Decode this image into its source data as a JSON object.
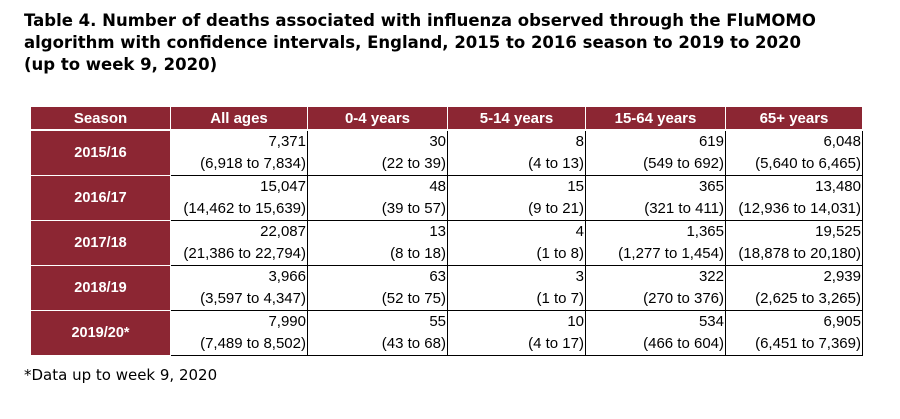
{
  "title_lines": [
    "Table 4. Number of deaths associated with influenza observed through the FluMOMO",
    "algorithm with confidence intervals, England, 2015 to 2016 season to 2019 to 2020",
    "(up to week 9, 2020)"
  ],
  "headers": [
    "Season",
    "All ages",
    "0-4 years",
    "5-14 years",
    "15-64 years",
    "65+ years"
  ],
  "rows": [
    {
      "season": "2015/16",
      "cells": [
        {
          "value": "7,371",
          "ci": "(6,918 to 7,834)"
        },
        {
          "value": "30",
          "ci": "(22 to 39)"
        },
        {
          "value": "8",
          "ci": "(4 to 13)"
        },
        {
          "value": "619",
          "ci": "(549 to 692)"
        },
        {
          "value": "6,048",
          "ci": "(5,640 to 6,465)"
        }
      ]
    },
    {
      "season": "2016/17",
      "cells": [
        {
          "value": "15,047",
          "ci": "(14,462 to 15,639)"
        },
        {
          "value": "48",
          "ci": "(39 to 57)"
        },
        {
          "value": "15",
          "ci": "(9 to 21)"
        },
        {
          "value": "365",
          "ci": "(321 to 411)"
        },
        {
          "value": "13,480",
          "ci": "(12,936 to 14,031)"
        }
      ]
    },
    {
      "season": "2017/18",
      "cells": [
        {
          "value": "22,087",
          "ci": "(21,386 to 22,794)"
        },
        {
          "value": "13",
          "ci": "(8 to 18)"
        },
        {
          "value": "4",
          "ci": "(1 to 8)"
        },
        {
          "value": "1,365",
          "ci": "(1,277 to 1,454)"
        },
        {
          "value": "19,525",
          "ci": "(18,878 to 20,180)"
        }
      ]
    },
    {
      "season": "2018/19",
      "cells": [
        {
          "value": "3,966",
          "ci": "(3,597 to 4,347)"
        },
        {
          "value": "63",
          "ci": "(52 to 75)"
        },
        {
          "value": "3",
          "ci": "(1 to 7)"
        },
        {
          "value": "322",
          "ci": "(270 to 376)"
        },
        {
          "value": "2,939",
          "ci": "(2,625 to 3,265)"
        }
      ]
    },
    {
      "season": "2019/20*",
      "cells": [
        {
          "value": "7,990",
          "ci": "(7,489 to 8,502)"
        },
        {
          "value": "55",
          "ci": "(43 to 68)"
        },
        {
          "value": "10",
          "ci": "(4 to 17)"
        },
        {
          "value": "534",
          "ci": "(466 to 604)"
        },
        {
          "value": "6,905",
          "ci": "(6,451 to 7,369)"
        }
      ]
    }
  ],
  "footnote": "*Data up to week 9, 2020",
  "colors": {
    "header_bg": "#8c2633",
    "header_text": "#ffffff"
  }
}
